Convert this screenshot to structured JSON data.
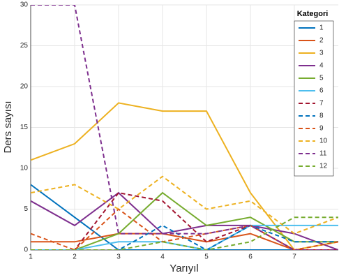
{
  "chart_data": {
    "type": "line",
    "x_label": "Yarıyıl",
    "y_label": "Ders sayısı",
    "legend_title": "Kategori",
    "legend": "northeast",
    "grid": true,
    "x": [
      1,
      2,
      3,
      4,
      5,
      6,
      7,
      8
    ],
    "xlim": [
      1,
      8
    ],
    "xticks": [
      1,
      2,
      3,
      4,
      5,
      6,
      7
    ],
    "ylim": [
      0,
      30
    ],
    "yticks": [
      0,
      5,
      10,
      15,
      20,
      25,
      30
    ],
    "series": [
      {
        "name": "1",
        "color": "#0072BD",
        "dash": false,
        "values": [
          8,
          4,
          0,
          0,
          0,
          0,
          0,
          0
        ]
      },
      {
        "name": "2",
        "color": "#D95319",
        "dash": false,
        "values": [
          1,
          1,
          2,
          2,
          1,
          2,
          0,
          0
        ]
      },
      {
        "name": "3",
        "color": "#EDB120",
        "dash": false,
        "values": [
          11,
          13,
          18,
          17,
          17,
          7,
          0,
          1
        ]
      },
      {
        "name": "4",
        "color": "#7E2F8E",
        "dash": false,
        "values": [
          6,
          3,
          7,
          2,
          3,
          3,
          2,
          0
        ]
      },
      {
        "name": "5",
        "color": "#77AC30",
        "dash": false,
        "values": [
          0,
          0,
          2,
          7,
          3,
          4,
          1,
          1
        ]
      },
      {
        "name": "6",
        "color": "#4DBEEE",
        "dash": false,
        "values": [
          0,
          0,
          1,
          1,
          0,
          3,
          3,
          3
        ]
      },
      {
        "name": "7",
        "color": "#A2142F",
        "dash": true,
        "values": [
          0,
          0,
          7,
          6,
          1,
          3,
          0,
          0
        ]
      },
      {
        "name": "8",
        "color": "#0072BD",
        "dash": true,
        "values": [
          0,
          0,
          0,
          3,
          0,
          3,
          1,
          1
        ]
      },
      {
        "name": "9",
        "color": "#D95319",
        "dash": true,
        "values": [
          2,
          0,
          5,
          1,
          2,
          3,
          0,
          1
        ]
      },
      {
        "name": "10",
        "color": "#EDB120",
        "dash": true,
        "values": [
          7,
          8,
          5,
          9,
          5,
          6,
          2,
          4
        ]
      },
      {
        "name": "11",
        "color": "#7E2F8E",
        "dash": true,
        "values": [
          30,
          30,
          2,
          2,
          2,
          3,
          0,
          0
        ]
      },
      {
        "name": "12",
        "color": "#77AC30",
        "dash": true,
        "values": [
          0,
          0,
          0,
          1,
          0,
          1,
          4,
          4
        ]
      }
    ]
  }
}
